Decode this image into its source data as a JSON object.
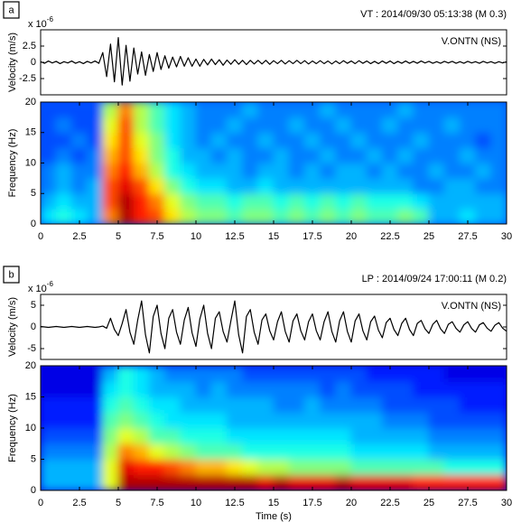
{
  "chart_data": [
    {
      "type": "line",
      "panel_label": "a",
      "title": "VT : 2014/09/30 05:13:38 (M 0.3)",
      "annotation": "V.ONTN (NS)",
      "ylabel": "Velocity (m/s)",
      "scale_label": "x 10",
      "scale_power": "-6",
      "color": "#000000",
      "xlim": [
        0,
        30
      ],
      "ylim": [
        -5,
        5
      ],
      "yticks": [
        -2.5,
        0,
        2.5
      ],
      "x": [
        0,
        0.25,
        0.5,
        0.75,
        1,
        1.25,
        1.5,
        1.75,
        2,
        2.25,
        2.5,
        2.75,
        3,
        3.25,
        3.5,
        3.75,
        4,
        4.25,
        4.5,
        4.75,
        5,
        5.25,
        5.5,
        5.75,
        6,
        6.25,
        6.5,
        6.75,
        7,
        7.25,
        7.5,
        7.75,
        8,
        8.25,
        8.5,
        8.75,
        9,
        9.25,
        9.5,
        9.75,
        10,
        10.25,
        10.5,
        10.75,
        11,
        11.25,
        11.5,
        11.75,
        12,
        12.25,
        12.5,
        12.75,
        13,
        13.25,
        13.5,
        13.75,
        14,
        14.25,
        14.5,
        14.75,
        15,
        15.25,
        15.5,
        15.75,
        16,
        16.25,
        16.5,
        16.75,
        17,
        17.25,
        17.5,
        17.75,
        18,
        18.25,
        18.5,
        18.75,
        19,
        19.25,
        19.5,
        19.75,
        20,
        20.25,
        20.5,
        20.75,
        21,
        21.25,
        21.5,
        21.75,
        22,
        22.25,
        22.5,
        22.75,
        23,
        23.25,
        23.5,
        23.75,
        24,
        24.25,
        24.5,
        24.75,
        25,
        25.25,
        25.5,
        25.75,
        26,
        26.25,
        26.5,
        26.75,
        27,
        27.25,
        27.5,
        27.75,
        28,
        28.25,
        28.5,
        28.75,
        29,
        29.25,
        29.5,
        29.75,
        30
      ],
      "values": [
        0.1,
        -0.15,
        0.2,
        -0.1,
        0.15,
        -0.2,
        0.1,
        -0.1,
        0.2,
        -0.15,
        0.1,
        -0.2,
        0.15,
        -0.1,
        0.2,
        -0.15,
        1.5,
        -2.2,
        2.8,
        -3.0,
        3.8,
        -3.5,
        2.6,
        -2.9,
        2.2,
        -1.8,
        1.6,
        -2.0,
        1.2,
        -1.4,
        1.5,
        -1.1,
        1.0,
        -0.9,
        0.8,
        -0.7,
        0.9,
        -0.6,
        0.7,
        -0.6,
        0.5,
        -0.6,
        0.45,
        -0.4,
        0.5,
        -0.35,
        0.4,
        -0.45,
        0.35,
        -0.3,
        0.4,
        -0.3,
        0.3,
        -0.35,
        0.3,
        -0.25,
        0.3,
        -0.25,
        0.3,
        -0.3,
        0.25,
        -0.2,
        0.3,
        -0.25,
        0.25,
        -0.2,
        0.3,
        -0.2,
        0.25,
        -0.25,
        0.2,
        -0.2,
        0.25,
        -0.2,
        0.2,
        -0.25,
        0.2,
        -0.2,
        0.25,
        -0.15,
        0.2,
        -0.2,
        0.25,
        -0.15,
        0.2,
        -0.2,
        0.15,
        -0.2,
        0.2,
        -0.15,
        0.2,
        -0.2,
        0.15,
        -0.15,
        0.2,
        -0.15,
        0.15,
        -0.15,
        0.2,
        -0.1,
        0.15,
        -0.15,
        0.1,
        -0.15,
        0.15,
        -0.1,
        0.15,
        -0.15,
        0.1,
        -0.15,
        0.15,
        -0.1,
        0.1,
        -0.15,
        0.15,
        -0.1,
        0.1,
        -0.15,
        0.1,
        -0.1,
        0.1
      ]
    },
    {
      "type": "heatmap",
      "ylabel": "Frequency (Hz)",
      "colormap": "jet",
      "xlim": [
        0,
        30
      ],
      "ylim": [
        0,
        20
      ],
      "yticks": [
        0,
        5,
        10,
        15,
        20
      ],
      "xticks": [
        0,
        2.5,
        5,
        7.5,
        10,
        12.5,
        15,
        17.5,
        20,
        22.5,
        25,
        27.5,
        30
      ],
      "x_edges": [
        0,
        1,
        2,
        3,
        4,
        5,
        6,
        7,
        8,
        9,
        10,
        11,
        12,
        13,
        14,
        15,
        16,
        17,
        18,
        19,
        20,
        21,
        22,
        23,
        24,
        25,
        26,
        27,
        28,
        29,
        30
      ],
      "y_edges": [
        0,
        2.5,
        5,
        7.5,
        10,
        12.5,
        15,
        17.5,
        20
      ],
      "z": [
        [
          0.35,
          0.4,
          0.35,
          0.3,
          0.75,
          0.95,
          0.85,
          0.8,
          0.65,
          0.55,
          0.5,
          0.5,
          0.45,
          0.5,
          0.5,
          0.45,
          0.5,
          0.45,
          0.5,
          0.45,
          0.5,
          0.45,
          0.45,
          0.5,
          0.45,
          0.3,
          0.3,
          0.35,
          0.3,
          0.3
        ],
        [
          0.3,
          0.35,
          0.3,
          0.3,
          0.8,
          0.95,
          0.85,
          0.75,
          0.6,
          0.5,
          0.45,
          0.45,
          0.4,
          0.45,
          0.45,
          0.4,
          0.45,
          0.4,
          0.45,
          0.4,
          0.45,
          0.4,
          0.4,
          0.4,
          0.35,
          0.3,
          0.3,
          0.3,
          0.3,
          0.3
        ],
        [
          0.25,
          0.3,
          0.25,
          0.3,
          0.8,
          0.9,
          0.8,
          0.65,
          0.5,
          0.4,
          0.35,
          0.35,
          0.3,
          0.3,
          0.35,
          0.3,
          0.3,
          0.3,
          0.3,
          0.3,
          0.3,
          0.3,
          0.3,
          0.3,
          0.25,
          0.25,
          0.3,
          0.3,
          0.25,
          0.25
        ],
        [
          0.25,
          0.3,
          0.25,
          0.25,
          0.75,
          0.85,
          0.7,
          0.55,
          0.4,
          0.35,
          0.3,
          0.3,
          0.3,
          0.25,
          0.3,
          0.3,
          0.25,
          0.3,
          0.25,
          0.3,
          0.3,
          0.25,
          0.3,
          0.25,
          0.25,
          0.3,
          0.25,
          0.25,
          0.3,
          0.25
        ],
        [
          0.2,
          0.25,
          0.2,
          0.25,
          0.7,
          0.8,
          0.65,
          0.5,
          0.4,
          0.3,
          0.3,
          0.25,
          0.3,
          0.25,
          0.25,
          0.3,
          0.25,
          0.25,
          0.3,
          0.25,
          0.25,
          0.3,
          0.25,
          0.3,
          0.25,
          0.25,
          0.25,
          0.3,
          0.25,
          0.25
        ],
        [
          0.2,
          0.2,
          0.25,
          0.2,
          0.65,
          0.8,
          0.6,
          0.5,
          0.35,
          0.3,
          0.25,
          0.3,
          0.25,
          0.25,
          0.3,
          0.25,
          0.25,
          0.3,
          0.25,
          0.25,
          0.3,
          0.25,
          0.25,
          0.25,
          0.3,
          0.25,
          0.25,
          0.25,
          0.2,
          0.25
        ],
        [
          0.2,
          0.25,
          0.2,
          0.2,
          0.6,
          0.8,
          0.55,
          0.45,
          0.35,
          0.3,
          0.25,
          0.25,
          0.3,
          0.25,
          0.25,
          0.25,
          0.3,
          0.25,
          0.25,
          0.3,
          0.25,
          0.25,
          0.3,
          0.25,
          0.25,
          0.25,
          0.3,
          0.25,
          0.25,
          0.25
        ],
        [
          0.2,
          0.2,
          0.2,
          0.2,
          0.55,
          0.75,
          0.55,
          0.45,
          0.35,
          0.3,
          0.25,
          0.25,
          0.25,
          0.3,
          0.25,
          0.25,
          0.25,
          0.25,
          0.3,
          0.25,
          0.25,
          0.25,
          0.25,
          0.3,
          0.25,
          0.25,
          0.25,
          0.25,
          0.25,
          0.25
        ]
      ]
    },
    {
      "type": "line",
      "panel_label": "b",
      "title": "LP : 2014/09/24 17:00:11 (M 0.2)",
      "annotation": "V.ONTN (NS)",
      "ylabel": "Velocity (m/s)",
      "scale_label": "x 10",
      "scale_power": "-6",
      "color": "#000000",
      "xlim": [
        0,
        30
      ],
      "ylim": [
        -7.5,
        7.5
      ],
      "yticks": [
        -5,
        0,
        5
      ],
      "x": [
        0,
        0.25,
        0.5,
        0.75,
        1,
        1.25,
        1.5,
        1.75,
        2,
        2.25,
        2.5,
        2.75,
        3,
        3.25,
        3.5,
        3.75,
        4,
        4.25,
        4.5,
        4.75,
        5,
        5.25,
        5.5,
        5.75,
        6,
        6.25,
        6.5,
        6.75,
        7,
        7.25,
        7.5,
        7.75,
        8,
        8.25,
        8.5,
        8.75,
        9,
        9.25,
        9.5,
        9.75,
        10,
        10.25,
        10.5,
        10.75,
        11,
        11.25,
        11.5,
        11.75,
        12,
        12.25,
        12.5,
        12.75,
        13,
        13.25,
        13.5,
        13.75,
        14,
        14.25,
        14.5,
        14.75,
        15,
        15.25,
        15.5,
        15.75,
        16,
        16.25,
        16.5,
        16.75,
        17,
        17.25,
        17.5,
        17.75,
        18,
        18.25,
        18.5,
        18.75,
        19,
        19.25,
        19.5,
        19.75,
        20,
        20.25,
        20.5,
        20.75,
        21,
        21.25,
        21.5,
        21.75,
        22,
        22.25,
        22.5,
        22.75,
        23,
        23.25,
        23.5,
        23.75,
        24,
        24.25,
        24.5,
        24.75,
        25,
        25.25,
        25.5,
        25.75,
        26,
        26.25,
        26.5,
        26.75,
        27,
        27.25,
        27.5,
        27.75,
        28,
        28.25,
        28.5,
        28.75,
        29,
        29.25,
        29.5,
        29.75,
        30
      ],
      "values": [
        0.1,
        0,
        -0.1,
        0,
        0.1,
        0,
        -0.1,
        0,
        0.1,
        0,
        -0.1,
        0,
        0.1,
        0,
        -0.1,
        0,
        0.2,
        -0.3,
        2,
        -0.6,
        -2,
        0.8,
        4,
        -1.2,
        -4,
        1.6,
        6,
        -1.8,
        -6,
        2.4,
        5,
        -1.5,
        -5,
        2,
        4,
        -1.2,
        -4,
        1.6,
        4.5,
        -1.35,
        -4.5,
        1.8,
        5,
        -1.5,
        -5,
        2,
        3.5,
        -1.05,
        -3.5,
        1.4,
        6,
        -1.8,
        -6,
        2.4,
        4,
        -1.2,
        -4,
        1.6,
        3,
        -0.9,
        -3,
        1.2,
        3.5,
        -1.05,
        -3.5,
        1.4,
        3,
        -0.9,
        -3,
        1.2,
        3,
        -0.9,
        -3,
        1.2,
        3.5,
        -1.05,
        -3.5,
        1.4,
        3.5,
        -1.05,
        -3.5,
        1.4,
        3,
        -0.9,
        -3,
        1.2,
        2.5,
        -0.75,
        -2.5,
        1,
        2,
        -0.6,
        -2,
        0.8,
        2,
        -0.6,
        -2,
        0.8,
        1.5,
        -0.45,
        -1.5,
        0.6,
        1.5,
        -0.45,
        -1.5,
        0.6,
        1.2,
        -0.36,
        -1.2,
        0.48,
        1.2,
        -0.36,
        -1.2,
        0.48,
        1,
        -0.3,
        -1,
        0.4,
        1,
        -0.3,
        -1
      ]
    },
    {
      "type": "heatmap",
      "ylabel": "Frequency (Hz)",
      "xlabel": "Time (s)",
      "colormap": "jet",
      "xlim": [
        0,
        30
      ],
      "ylim": [
        0,
        20
      ],
      "yticks": [
        0,
        5,
        10,
        15,
        20
      ],
      "xticks": [
        0,
        2.5,
        5,
        7.5,
        10,
        12.5,
        15,
        17.5,
        20,
        22.5,
        25,
        27.5,
        30
      ],
      "x_edges": [
        0,
        1,
        2,
        3,
        4,
        5,
        6,
        7,
        8,
        9,
        10,
        11,
        12,
        13,
        14,
        15,
        16,
        17,
        18,
        19,
        20,
        21,
        22,
        23,
        24,
        25,
        26,
        27,
        28,
        29,
        30
      ],
      "y_edges": [
        0,
        2.5,
        5,
        7.5,
        10,
        12.5,
        15,
        17.5,
        20
      ],
      "z": [
        [
          0.3,
          0.3,
          0.3,
          0.3,
          0.6,
          0.95,
          0.95,
          0.95,
          0.95,
          0.95,
          0.95,
          0.95,
          0.95,
          0.95,
          0.9,
          0.95,
          0.9,
          0.9,
          0.9,
          0.95,
          0.9,
          0.9,
          0.9,
          0.9,
          0.85,
          0.85,
          0.85,
          0.85,
          0.85,
          0.85
        ],
        [
          0.3,
          0.3,
          0.3,
          0.3,
          0.6,
          0.9,
          0.85,
          0.85,
          0.8,
          0.75,
          0.7,
          0.7,
          0.65,
          0.6,
          0.55,
          0.55,
          0.5,
          0.5,
          0.5,
          0.5,
          0.45,
          0.45,
          0.45,
          0.45,
          0.45,
          0.45,
          0.4,
          0.4,
          0.4,
          0.4
        ],
        [
          0.25,
          0.25,
          0.25,
          0.25,
          0.55,
          0.75,
          0.7,
          0.6,
          0.55,
          0.5,
          0.45,
          0.45,
          0.45,
          0.4,
          0.4,
          0.4,
          0.4,
          0.4,
          0.4,
          0.4,
          0.35,
          0.35,
          0.35,
          0.35,
          0.35,
          0.3,
          0.3,
          0.3,
          0.3,
          0.3
        ],
        [
          0.2,
          0.2,
          0.2,
          0.2,
          0.5,
          0.6,
          0.55,
          0.45,
          0.45,
          0.4,
          0.4,
          0.4,
          0.35,
          0.35,
          0.35,
          0.35,
          0.35,
          0.35,
          0.35,
          0.35,
          0.3,
          0.3,
          0.3,
          0.3,
          0.3,
          0.25,
          0.25,
          0.25,
          0.25,
          0.25
        ],
        [
          0.15,
          0.15,
          0.15,
          0.15,
          0.45,
          0.5,
          0.45,
          0.4,
          0.35,
          0.35,
          0.35,
          0.35,
          0.3,
          0.3,
          0.3,
          0.3,
          0.3,
          0.3,
          0.3,
          0.3,
          0.3,
          0.3,
          0.25,
          0.25,
          0.25,
          0.2,
          0.2,
          0.2,
          0.2,
          0.2
        ],
        [
          0.15,
          0.15,
          0.15,
          0.15,
          0.4,
          0.45,
          0.4,
          0.35,
          0.35,
          0.3,
          0.3,
          0.3,
          0.3,
          0.3,
          0.3,
          0.25,
          0.25,
          0.3,
          0.25,
          0.25,
          0.25,
          0.25,
          0.2,
          0.2,
          0.2,
          0.2,
          0.2,
          0.15,
          0.15,
          0.15
        ],
        [
          0.1,
          0.1,
          0.1,
          0.1,
          0.35,
          0.4,
          0.35,
          0.3,
          0.3,
          0.3,
          0.25,
          0.3,
          0.25,
          0.25,
          0.25,
          0.25,
          0.25,
          0.25,
          0.2,
          0.25,
          0.2,
          0.2,
          0.2,
          0.2,
          0.15,
          0.15,
          0.15,
          0.15,
          0.15,
          0.15
        ],
        [
          0.1,
          0.1,
          0.1,
          0.1,
          0.3,
          0.4,
          0.35,
          0.3,
          0.25,
          0.25,
          0.25,
          0.25,
          0.25,
          0.2,
          0.2,
          0.2,
          0.2,
          0.2,
          0.2,
          0.2,
          0.2,
          0.15,
          0.15,
          0.15,
          0.15,
          0.15,
          0.1,
          0.1,
          0.1,
          0.1
        ]
      ]
    }
  ]
}
